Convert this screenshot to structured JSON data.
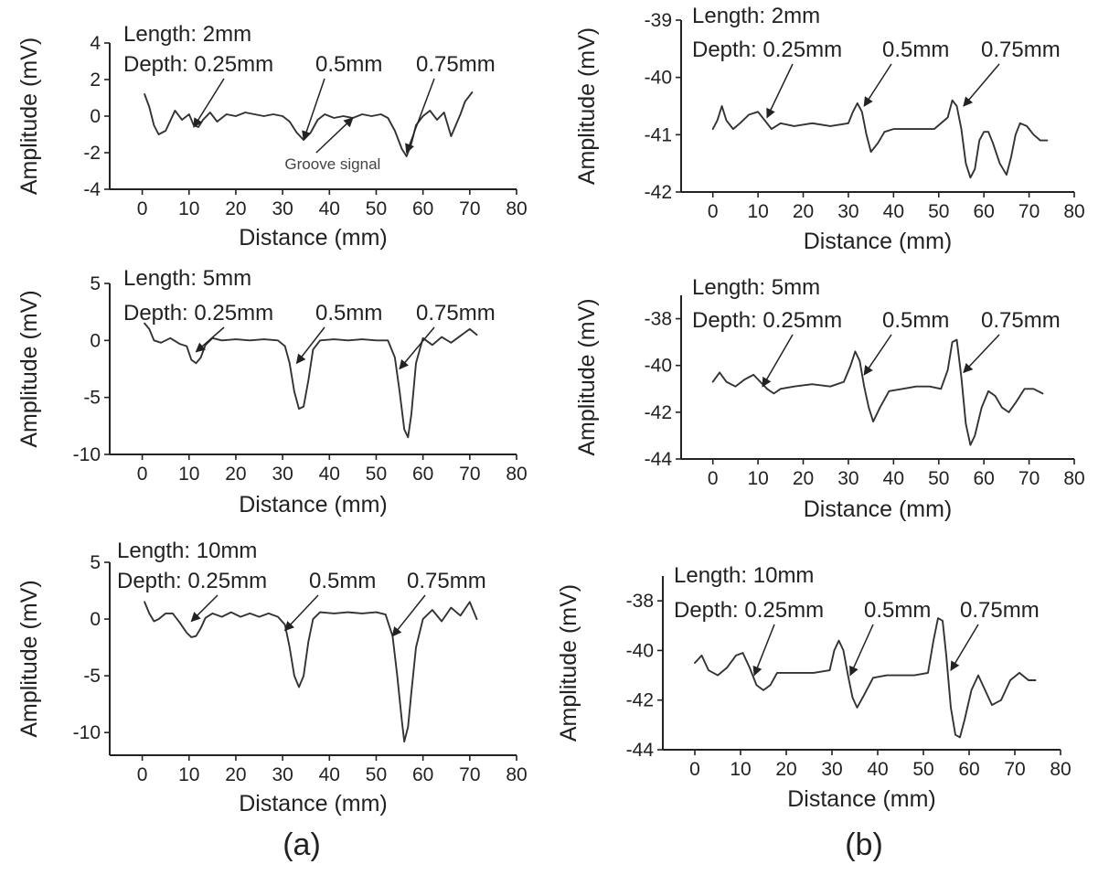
{
  "figure": {
    "panel_labels": [
      "(a)",
      "(b)"
    ]
  },
  "chart_data": [
    {
      "type": "line",
      "column": "a",
      "xlabel": "Distance (mm)",
      "ylabel": "Amplitude (mV)",
      "xlim": [
        -5,
        80
      ],
      "ylim": [
        -4,
        4
      ],
      "xticks": [
        0,
        10,
        20,
        30,
        40,
        50,
        60,
        70,
        80
      ],
      "yticks": [
        -4,
        -2,
        0,
        2,
        4
      ],
      "length_label": "Length: 2mm",
      "depth_label": "Depth: 0.25mm",
      "depth_labels": [
        "0.5mm",
        "0.75mm"
      ],
      "annotations": [
        {
          "text": "Groove signal",
          "x": 45,
          "y": -0.1
        }
      ],
      "arrow_targets": [
        {
          "x": 11,
          "y": -0.6
        },
        {
          "x": 34.5,
          "y": -1.3
        },
        {
          "x": 56.5,
          "y": -2.0
        },
        {
          "x": 45,
          "y": -0.1
        }
      ],
      "series": [
        {
          "x": [
            0.5,
            1.5,
            2.5,
            3.5,
            5,
            7,
            8.5,
            10,
            11,
            12,
            13,
            14.5,
            16,
            18,
            20,
            22,
            24,
            26,
            28,
            30,
            31.5,
            33,
            34.5,
            36,
            37.5,
            39,
            41,
            43,
            45,
            47,
            49,
            51,
            52.5,
            54,
            55.5,
            56.5,
            57.5,
            58.5,
            60,
            61.5,
            63,
            64.5,
            66,
            67,
            68,
            69,
            70.5
          ],
          "y": [
            1.2,
            0.5,
            -0.5,
            -1.0,
            -0.8,
            0.3,
            -0.2,
            0.1,
            -0.5,
            -0.6,
            -0.2,
            0.2,
            -0.3,
            0.1,
            0.0,
            0.2,
            0.1,
            0.0,
            0.1,
            0.0,
            -0.3,
            -0.9,
            -1.3,
            -0.9,
            -0.2,
            0.1,
            -0.1,
            0.0,
            -0.1,
            0.1,
            0.0,
            0.1,
            -0.1,
            -0.8,
            -1.8,
            -2.2,
            -1.5,
            -0.5,
            0.0,
            0.3,
            -0.2,
            0.2,
            -1.1,
            -0.5,
            0.1,
            0.8,
            1.3
          ]
        }
      ]
    },
    {
      "type": "line",
      "column": "a",
      "xlabel": "Distance (mm)",
      "ylabel": "Amplitude (mV)",
      "xlim": [
        -5,
        80
      ],
      "ylim": [
        -10,
        5
      ],
      "xticks": [
        0,
        10,
        20,
        30,
        40,
        50,
        60,
        70,
        80
      ],
      "yticks": [
        -10,
        -5,
        0,
        5
      ],
      "length_label": "Length: 5mm",
      "depth_label": "Depth: 0.25mm",
      "depth_labels": [
        "0.5mm",
        "0.75mm"
      ],
      "annotations": [],
      "arrow_targets": [
        {
          "x": 11.5,
          "y": -1.0
        },
        {
          "x": 33,
          "y": -2.0
        },
        {
          "x": 55,
          "y": -2.5
        }
      ],
      "series": [
        {
          "x": [
            0.5,
            1.5,
            2.5,
            4,
            6,
            8,
            9.5,
            10.5,
            11.5,
            12.5,
            13.5,
            15,
            17,
            20,
            23,
            26,
            29,
            30.5,
            31.5,
            32.5,
            33.5,
            34.5,
            35.5,
            36.5,
            38,
            41,
            44,
            47,
            50,
            52.5,
            54,
            55,
            56,
            56.8,
            57.5,
            58.5,
            60,
            62,
            64,
            66,
            68,
            70,
            71.5
          ],
          "y": [
            1.5,
            1.0,
            0.0,
            -0.2,
            0.2,
            -0.3,
            -0.5,
            -1.7,
            -2.0,
            -1.5,
            -0.4,
            0.2,
            0.0,
            0.1,
            0.0,
            0.1,
            0.0,
            -0.5,
            -2.0,
            -4.5,
            -6.0,
            -5.8,
            -3.5,
            -0.8,
            0.0,
            0.1,
            0.0,
            0.1,
            0.0,
            0.0,
            -1.5,
            -4.5,
            -7.8,
            -8.5,
            -6.5,
            -2.0,
            0.2,
            -0.4,
            0.3,
            -0.2,
            0.4,
            1.0,
            0.5
          ]
        }
      ]
    },
    {
      "type": "line",
      "column": "a",
      "xlabel": "Distance (mm)",
      "ylabel": "Amplitude (mV)",
      "xlim": [
        -5,
        80
      ],
      "ylim": [
        -12,
        5
      ],
      "xticks": [
        0,
        10,
        20,
        30,
        40,
        50,
        60,
        70,
        80
      ],
      "yticks": [
        -10,
        -5,
        0,
        5
      ],
      "length_label": "Length: 10mm",
      "depth_label": "Depth: 0.25mm",
      "depth_labels": [
        "0.5mm",
        "0.75mm"
      ],
      "annotations": [],
      "arrow_targets": [
        {
          "x": 10.5,
          "y": -0.2
        },
        {
          "x": 30.5,
          "y": -1.0
        },
        {
          "x": 53.5,
          "y": -1.5
        }
      ],
      "series": [
        {
          "x": [
            0.5,
            1.5,
            2.5,
            3.5,
            5,
            6.5,
            8,
            9.5,
            10.5,
            11.5,
            12.5,
            13.5,
            15,
            17,
            19,
            21,
            23,
            25,
            27,
            29,
            30.5,
            31.5,
            32.5,
            33.5,
            34.5,
            35.5,
            36.5,
            38,
            41,
            44,
            47,
            50,
            52,
            53.5,
            54.5,
            55.5,
            56,
            56.8,
            57.5,
            58.5,
            60,
            62,
            64,
            66,
            68,
            70,
            71.5
          ],
          "y": [
            1.5,
            0.5,
            -0.2,
            0.0,
            0.5,
            0.5,
            -0.3,
            -1.2,
            -1.6,
            -1.5,
            -0.8,
            0.1,
            0.5,
            0.2,
            0.6,
            0.2,
            0.5,
            0.2,
            0.5,
            0.2,
            -0.5,
            -2.5,
            -5.0,
            -6.0,
            -5.0,
            -2.0,
            0.0,
            0.6,
            0.5,
            0.6,
            0.5,
            0.6,
            0.4,
            -1.5,
            -5.0,
            -9.0,
            -10.8,
            -9.5,
            -6.5,
            -2.5,
            0.0,
            0.8,
            -0.2,
            1.0,
            0.3,
            1.5,
            0.0
          ]
        }
      ]
    },
    {
      "type": "line",
      "column": "b",
      "xlabel": "Distance (mm)",
      "ylabel": "Amplitude (mV)",
      "xlim": [
        -5,
        80
      ],
      "ylim": [
        -42,
        -39
      ],
      "xticks": [
        0,
        10,
        20,
        30,
        40,
        50,
        60,
        70,
        80
      ],
      "yticks": [
        -42,
        -41,
        -40,
        -39
      ],
      "length_label": "Length: 2mm",
      "depth_label": "Depth: 0.25mm",
      "depth_labels": [
        "0.5mm",
        "0.75mm"
      ],
      "annotations": [],
      "arrow_targets": [
        {
          "x": 12,
          "y": -40.7
        },
        {
          "x": 33.5,
          "y": -40.5
        },
        {
          "x": 55.5,
          "y": -40.5
        }
      ],
      "series": [
        {
          "x": [
            0,
            1,
            2,
            3,
            4.5,
            6,
            8,
            10,
            11.5,
            13,
            15,
            18,
            22,
            26,
            30,
            31,
            32,
            33,
            34,
            35,
            36.5,
            38,
            40,
            43,
            46,
            49,
            52,
            53,
            54,
            55,
            56,
            57,
            58,
            59,
            60,
            61,
            62,
            63.5,
            65,
            66,
            67,
            68,
            69.5,
            71,
            72.5,
            74
          ],
          "y": [
            -40.9,
            -40.75,
            -40.5,
            -40.75,
            -40.9,
            -40.8,
            -40.65,
            -40.6,
            -40.75,
            -40.9,
            -40.8,
            -40.85,
            -40.8,
            -40.85,
            -40.8,
            -40.6,
            -40.45,
            -40.6,
            -41.0,
            -41.3,
            -41.15,
            -40.95,
            -40.9,
            -40.9,
            -40.9,
            -40.9,
            -40.7,
            -40.4,
            -40.5,
            -40.9,
            -41.5,
            -41.75,
            -41.6,
            -41.1,
            -40.95,
            -40.95,
            -41.15,
            -41.5,
            -41.7,
            -41.4,
            -41.0,
            -40.8,
            -40.85,
            -41.0,
            -41.1,
            -41.1
          ]
        }
      ]
    },
    {
      "type": "line",
      "column": "b",
      "xlabel": "Distance (mm)",
      "ylabel": "Amplitude (mV)",
      "xlim": [
        -5,
        80
      ],
      "ylim": [
        -44,
        -37
      ],
      "xticks": [
        0,
        10,
        20,
        30,
        40,
        50,
        60,
        70,
        80
      ],
      "yticks": [
        -44,
        -42,
        -40,
        -38
      ],
      "length_label": "Length: 5mm",
      "depth_label": "Depth: 0.25mm",
      "depth_labels": [
        "0.5mm",
        "0.75mm"
      ],
      "annotations": [],
      "arrow_targets": [
        {
          "x": 11,
          "y": -40.9
        },
        {
          "x": 33.5,
          "y": -40.4
        },
        {
          "x": 55.5,
          "y": -40.3
        }
      ],
      "series": [
        {
          "x": [
            0,
            1.5,
            3,
            5,
            7,
            9,
            10.5,
            12,
            13.5,
            15,
            18,
            22,
            26,
            29,
            30.5,
            31.5,
            32.5,
            33.5,
            34.5,
            35.5,
            37,
            39,
            42,
            45,
            48,
            50.5,
            52,
            53,
            54,
            55,
            56,
            57,
            58,
            59.5,
            61,
            62.5,
            64,
            65.5,
            67,
            69,
            71,
            73
          ],
          "y": [
            -40.7,
            -40.3,
            -40.7,
            -40.9,
            -40.6,
            -40.4,
            -40.7,
            -41.0,
            -41.2,
            -41.0,
            -40.9,
            -40.8,
            -40.9,
            -40.7,
            -40.0,
            -39.4,
            -39.8,
            -40.9,
            -41.8,
            -42.4,
            -41.8,
            -41.1,
            -41.0,
            -40.9,
            -40.9,
            -41.0,
            -40.2,
            -39.0,
            -38.9,
            -40.5,
            -42.5,
            -43.4,
            -43.0,
            -41.8,
            -41.1,
            -41.3,
            -41.8,
            -42.0,
            -41.6,
            -41.0,
            -41.0,
            -41.2
          ]
        }
      ]
    },
    {
      "type": "line",
      "column": "b",
      "xlabel": "Distance (mm)",
      "ylabel": "Amplitude (mV)",
      "xlim": [
        -5,
        80
      ],
      "ylim": [
        -44,
        -37
      ],
      "xticks": [
        0,
        10,
        20,
        30,
        40,
        50,
        60,
        70,
        80
      ],
      "yticks": [
        -44,
        -42,
        -40,
        -38
      ],
      "length_label": "Length: 10mm",
      "depth_label": "Depth: 0.25mm",
      "depth_labels": [
        "0.5mm",
        "0.75mm"
      ],
      "annotations": [],
      "arrow_targets": [
        {
          "x": 13,
          "y": -41.0
        },
        {
          "x": 34,
          "y": -41.0
        },
        {
          "x": 56,
          "y": -40.8
        }
      ],
      "series": [
        {
          "x": [
            0,
            1.5,
            3,
            5,
            7,
            9,
            10.5,
            12,
            13.5,
            15,
            16.5,
            18,
            22,
            26,
            29.5,
            30.5,
            31.5,
            32.5,
            33.5,
            34.5,
            35.5,
            37,
            39,
            42,
            45,
            48,
            51,
            52.2,
            53.2,
            54.2,
            55,
            56,
            57,
            58,
            59,
            60.5,
            62,
            63.5,
            65,
            67,
            69,
            71,
            73,
            74.5
          ],
          "y": [
            -40.5,
            -40.2,
            -40.8,
            -41.0,
            -40.7,
            -40.2,
            -40.1,
            -40.7,
            -41.4,
            -41.6,
            -41.4,
            -40.9,
            -40.9,
            -40.9,
            -40.8,
            -40.0,
            -39.6,
            -40.0,
            -41.0,
            -41.9,
            -42.3,
            -41.8,
            -41.1,
            -41.0,
            -41.0,
            -41.0,
            -40.9,
            -39.6,
            -38.7,
            -38.8,
            -40.2,
            -42.3,
            -43.4,
            -43.5,
            -42.8,
            -41.6,
            -41.0,
            -41.6,
            -42.2,
            -42.0,
            -41.2,
            -40.9,
            -41.2,
            -41.2
          ]
        }
      ]
    }
  ]
}
